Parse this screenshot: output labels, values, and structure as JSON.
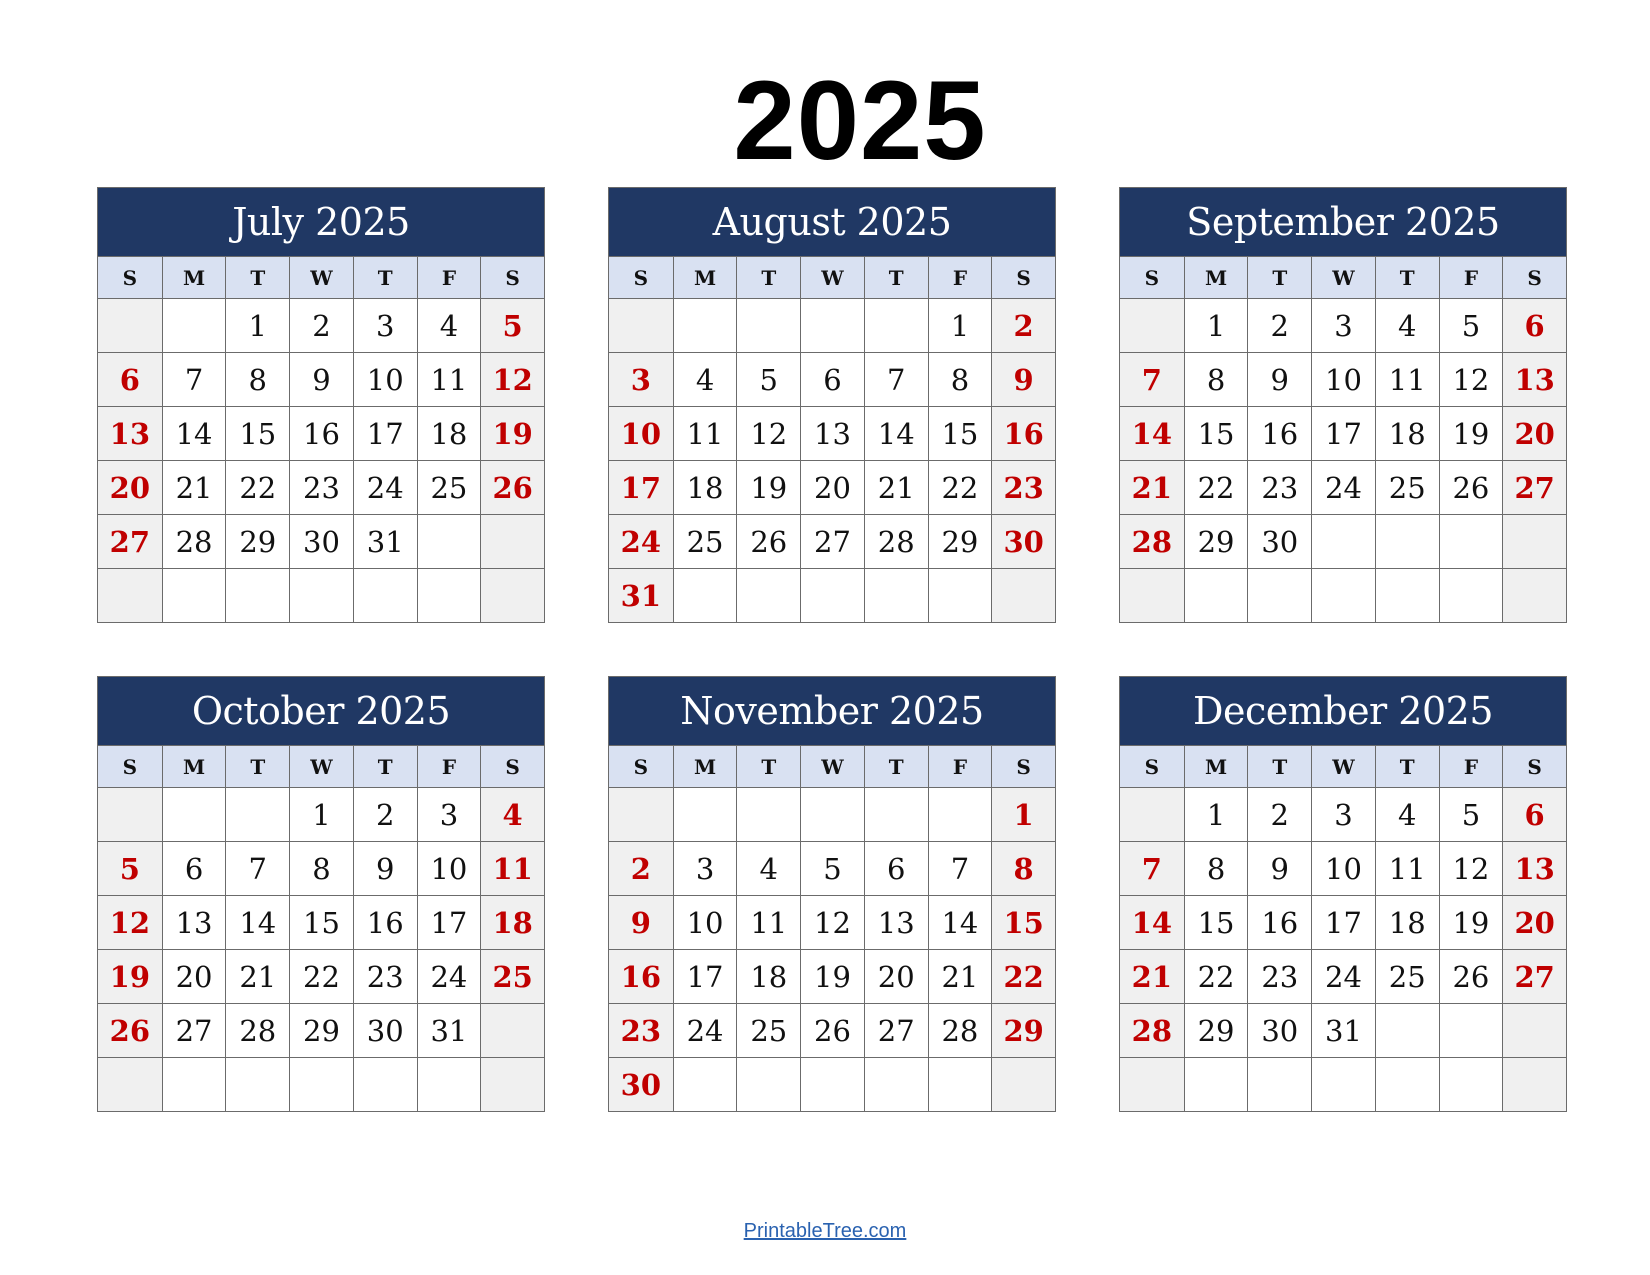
{
  "title": "2025",
  "weekdays": [
    "S",
    "M",
    "T",
    "W",
    "T",
    "F",
    "S"
  ],
  "months": [
    {
      "name": "July 2025",
      "weeks": [
        [
          "",
          "",
          "1",
          "2",
          "3",
          "4",
          "5"
        ],
        [
          "6",
          "7",
          "8",
          "9",
          "10",
          "11",
          "12"
        ],
        [
          "13",
          "14",
          "15",
          "16",
          "17",
          "18",
          "19"
        ],
        [
          "20",
          "21",
          "22",
          "23",
          "24",
          "25",
          "26"
        ],
        [
          "27",
          "28",
          "29",
          "30",
          "31",
          "",
          ""
        ],
        [
          "",
          "",
          "",
          "",
          "",
          "",
          ""
        ]
      ]
    },
    {
      "name": "August 2025",
      "weeks": [
        [
          "",
          "",
          "",
          "",
          "",
          "1",
          "2"
        ],
        [
          "3",
          "4",
          "5",
          "6",
          "7",
          "8",
          "9"
        ],
        [
          "10",
          "11",
          "12",
          "13",
          "14",
          "15",
          "16"
        ],
        [
          "17",
          "18",
          "19",
          "20",
          "21",
          "22",
          "23"
        ],
        [
          "24",
          "25",
          "26",
          "27",
          "28",
          "29",
          "30"
        ],
        [
          "31",
          "",
          "",
          "",
          "",
          "",
          ""
        ]
      ]
    },
    {
      "name": "September 2025",
      "weeks": [
        [
          "",
          "1",
          "2",
          "3",
          "4",
          "5",
          "6"
        ],
        [
          "7",
          "8",
          "9",
          "10",
          "11",
          "12",
          "13"
        ],
        [
          "14",
          "15",
          "16",
          "17",
          "18",
          "19",
          "20"
        ],
        [
          "21",
          "22",
          "23",
          "24",
          "25",
          "26",
          "27"
        ],
        [
          "28",
          "29",
          "30",
          "",
          "",
          "",
          ""
        ],
        [
          "",
          "",
          "",
          "",
          "",
          "",
          ""
        ]
      ]
    },
    {
      "name": "October 2025",
      "weeks": [
        [
          "",
          "",
          "",
          "1",
          "2",
          "3",
          "4"
        ],
        [
          "5",
          "6",
          "7",
          "8",
          "9",
          "10",
          "11"
        ],
        [
          "12",
          "13",
          "14",
          "15",
          "16",
          "17",
          "18"
        ],
        [
          "19",
          "20",
          "21",
          "22",
          "23",
          "24",
          "25"
        ],
        [
          "26",
          "27",
          "28",
          "29",
          "30",
          "31",
          ""
        ],
        [
          "",
          "",
          "",
          "",
          "",
          "",
          ""
        ]
      ]
    },
    {
      "name": "November 2025",
      "weeks": [
        [
          "",
          "",
          "",
          "",
          "",
          "",
          "1"
        ],
        [
          "2",
          "3",
          "4",
          "5",
          "6",
          "7",
          "8"
        ],
        [
          "9",
          "10",
          "11",
          "12",
          "13",
          "14",
          "15"
        ],
        [
          "16",
          "17",
          "18",
          "19",
          "20",
          "21",
          "22"
        ],
        [
          "23",
          "24",
          "25",
          "26",
          "27",
          "28",
          "29"
        ],
        [
          "30",
          "",
          "",
          "",
          "",
          "",
          ""
        ]
      ]
    },
    {
      "name": "December 2025",
      "weeks": [
        [
          "",
          "1",
          "2",
          "3",
          "4",
          "5",
          "6"
        ],
        [
          "7",
          "8",
          "9",
          "10",
          "11",
          "12",
          "13"
        ],
        [
          "14",
          "15",
          "16",
          "17",
          "18",
          "19",
          "20"
        ],
        [
          "21",
          "22",
          "23",
          "24",
          "25",
          "26",
          "27"
        ],
        [
          "28",
          "29",
          "30",
          "31",
          "",
          "",
          ""
        ],
        [
          "",
          "",
          "",
          "",
          "",
          "",
          ""
        ]
      ]
    }
  ],
  "colors": {
    "header": "#203864",
    "weekday_row": "#d9e1f2",
    "weekend": "#c00000",
    "weekend_bg": "#f0f0f0",
    "link": "#2a62b0"
  },
  "footer": {
    "link": "PrintableTree.com"
  }
}
